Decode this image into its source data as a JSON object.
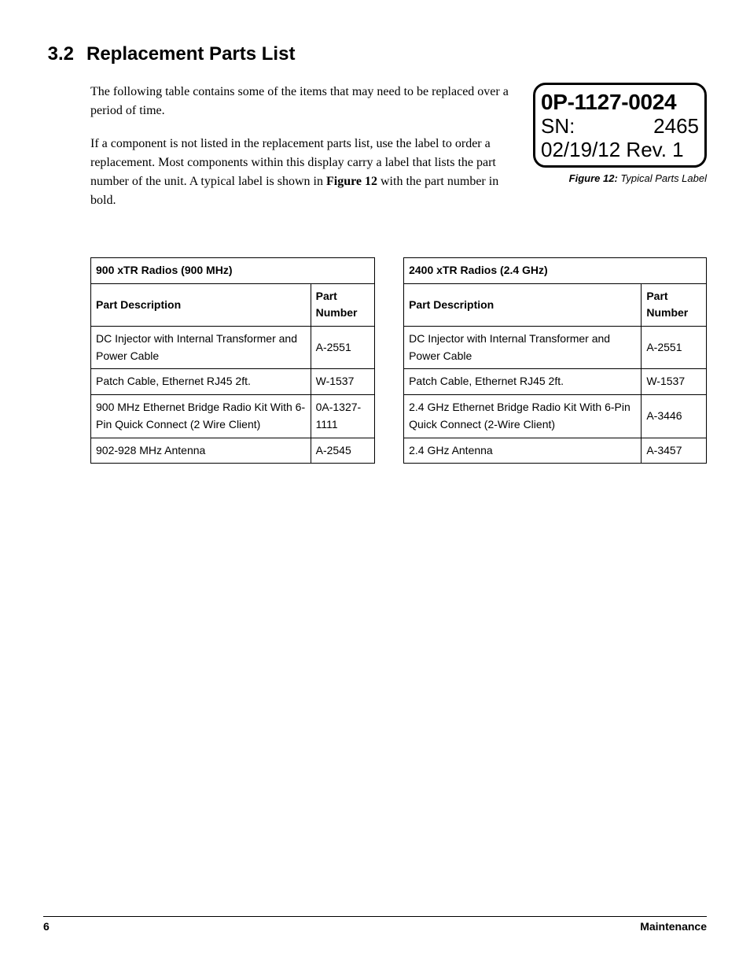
{
  "heading": {
    "number": "3.2",
    "title": "Replacement Parts List"
  },
  "paragraphs": {
    "p1": "The following table contains some of the items that may need to be replaced over a period of time.",
    "p2a": "If a component is not listed in the replacement parts list, use the label to order a replacement. Most components within this display carry a label that lists the part number of the unit. A typical label is shown in ",
    "p2b": "Figure 12",
    "p2c": " with the part number in bold."
  },
  "label": {
    "part_number": "0P-1127-0024",
    "sn_label": "SN:",
    "sn_value": "2465",
    "date_rev": "02/19/12 Rev. 1"
  },
  "figure_caption": {
    "ref": "Figure 12:",
    "text": " Typical Parts Label"
  },
  "table_left": {
    "title": "900 xTR Radios (900 MHz)",
    "col_desc": "Part Description",
    "col_num": "Part Number",
    "rows": [
      {
        "desc": "DC Injector with Internal Transformer and Power Cable",
        "num": "A-2551"
      },
      {
        "desc": "Patch Cable, Ethernet RJ45 2ft.",
        "num": "W-1537"
      },
      {
        "desc": "900 MHz Ethernet Bridge Radio Kit With 6-Pin Quick Connect (2 Wire Client)",
        "num": "0A-1327-1111"
      },
      {
        "desc": " 902-928 MHz Antenna",
        "num": "A-2545"
      }
    ]
  },
  "table_right": {
    "title": "2400 xTR Radios (2.4 GHz)",
    "col_desc": "Part Description",
    "col_num": "Part Number",
    "rows": [
      {
        "desc": "DC Injector with Internal Transformer and Power Cable",
        "num": "A-2551"
      },
      {
        "desc": "Patch Cable, Ethernet RJ45 2ft.",
        "num": "W-1537"
      },
      {
        "desc": "2.4 GHz Ethernet Bridge Radio Kit With 6-Pin Quick Connect (2-Wire Client)",
        "num": "A-3446"
      },
      {
        "desc": "2.4 GHz Antenna",
        "num": "A-3457"
      }
    ]
  },
  "footer": {
    "page": "6",
    "section": "Maintenance"
  }
}
